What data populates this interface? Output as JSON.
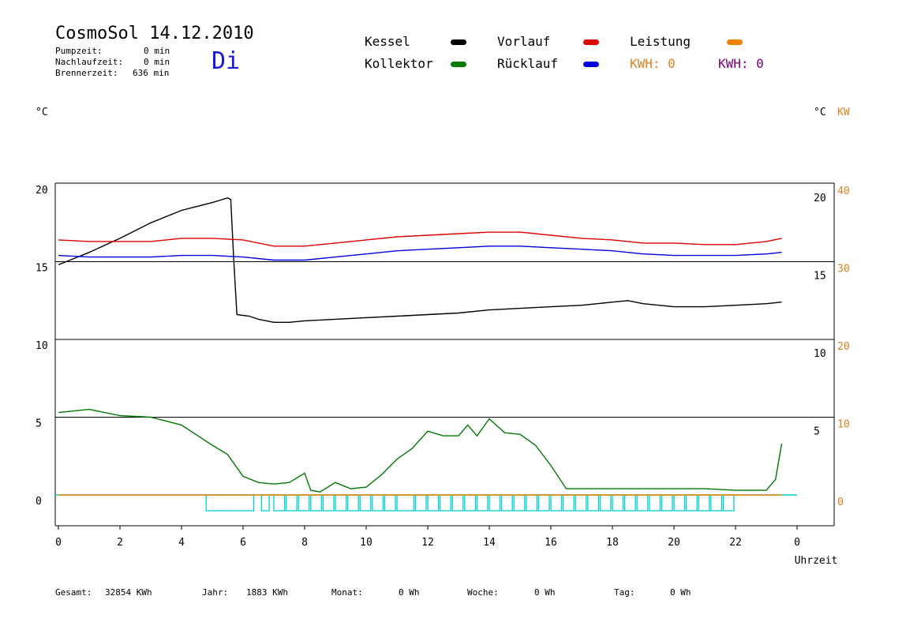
{
  "header": {
    "title": "CosmoSol 14.12.2010",
    "day": "Di",
    "pumpzeit_label": "Pumpzeit:",
    "pumpzeit_value": "0 min",
    "nachlaufzeit_label": "Nachlaufzeit:",
    "nachlaufzeit_value": "0 min",
    "brennerzeit_label": "Brennerzeit:",
    "brennerzeit_value": "636 min"
  },
  "legend": {
    "kessel": "Kessel",
    "vorlauf": "Vorlauf",
    "leistung": "Leistung",
    "kollektor": "Kollektor",
    "ruecklauf": "Rücklauf",
    "kwh1": "KWH: 0",
    "kwh2": "KWH: 0"
  },
  "colors": {
    "kessel": "#000000",
    "vorlauf": "#e00000",
    "ruecklauf": "#0000e0",
    "kollektor": "#007a00",
    "leistung": "#f08000",
    "kwh2": "#800080",
    "pump": "#00d0d0",
    "accent_orange": "#e08020"
  },
  "footer": {
    "gesamt_label": "Gesamt:",
    "gesamt_value": "32854 KWh",
    "jahr_label": "Jahr:",
    "jahr_value": "1883 KWh",
    "monat_label": "Monat:",
    "monat_value": "0 Wh",
    "woche_label": "Woche:",
    "woche_value": "0 Wh",
    "tag_label": "Tag:",
    "tag_value": "0 Wh"
  },
  "chart_data": {
    "type": "line",
    "left_unit": "°C",
    "right_unit": "°C",
    "right_unit2": "KW",
    "xlabel": "Uhrzeit",
    "x_ticks": [
      "0",
      "2",
      "4",
      "6",
      "8",
      "10",
      "12",
      "14",
      "16",
      "18",
      "20",
      "22",
      "0"
    ],
    "left_ticks": [
      "0",
      "5",
      "10",
      "15",
      "20"
    ],
    "right_ticks_inner": [
      "5",
      "10",
      "15",
      "20"
    ],
    "right_ticks_kw": [
      "0",
      "10",
      "20",
      "30",
      "40"
    ],
    "xlim": [
      0,
      24
    ],
    "ylim": [
      -2,
      20
    ],
    "grid": "horizontal",
    "series": [
      {
        "name": "Kessel",
        "color": "#000000",
        "x": [
          0,
          0.5,
          1,
          2,
          3,
          4,
          5,
          5.5,
          5.6,
          5.7,
          5.8,
          6.2,
          6.5,
          7,
          7.5,
          8,
          9,
          10,
          11,
          12,
          13,
          14,
          15,
          16,
          17,
          18,
          18.5,
          19,
          20,
          21,
          22,
          23,
          23.5
        ],
        "y": [
          14.8,
          15.2,
          15.6,
          16.5,
          17.5,
          18.3,
          18.8,
          19.1,
          19,
          15,
          11.6,
          11.5,
          11.3,
          11.1,
          11.1,
          11.2,
          11.3,
          11.4,
          11.5,
          11.6,
          11.7,
          11.9,
          12,
          12.1,
          12.2,
          12.4,
          12.5,
          12.3,
          12.1,
          12.1,
          12.2,
          12.3,
          12.4
        ]
      },
      {
        "name": "Vorlauf",
        "color": "#e00000",
        "x": [
          0,
          1,
          2,
          3,
          4,
          5,
          6,
          7,
          8,
          9,
          10,
          11,
          12,
          13,
          14,
          15,
          16,
          17,
          18,
          19,
          20,
          21,
          22,
          23,
          23.5
        ],
        "y": [
          16.4,
          16.3,
          16.3,
          16.3,
          16.5,
          16.5,
          16.4,
          16.0,
          16.0,
          16.2,
          16.4,
          16.6,
          16.7,
          16.8,
          16.9,
          16.9,
          16.7,
          16.5,
          16.4,
          16.2,
          16.2,
          16.1,
          16.1,
          16.3,
          16.5
        ]
      },
      {
        "name": "Rücklauf",
        "color": "#0000e0",
        "x": [
          0,
          1,
          2,
          3,
          4,
          5,
          6,
          7,
          8,
          9,
          10,
          11,
          12,
          13,
          14,
          15,
          16,
          17,
          18,
          19,
          20,
          21,
          22,
          23,
          23.5
        ],
        "y": [
          15.4,
          15.3,
          15.3,
          15.3,
          15.4,
          15.4,
          15.3,
          15.1,
          15.1,
          15.3,
          15.5,
          15.7,
          15.8,
          15.9,
          16.0,
          16.0,
          15.9,
          15.8,
          15.7,
          15.5,
          15.4,
          15.4,
          15.4,
          15.5,
          15.6
        ]
      },
      {
        "name": "Kollektor",
        "color": "#007a00",
        "x": [
          0,
          0.5,
          1,
          2,
          3,
          4,
          5,
          5.5,
          6,
          6.5,
          7,
          7.5,
          8,
          8.2,
          8.5,
          9,
          9.5,
          10,
          10.5,
          11,
          11.5,
          12,
          12.5,
          13,
          13.3,
          13.6,
          14,
          14.5,
          15,
          15.5,
          16,
          16.5,
          17,
          18,
          19,
          20,
          21,
          22,
          23,
          23.3,
          23.5
        ],
        "y": [
          5.3,
          5.4,
          5.5,
          5.1,
          5,
          4.5,
          3.2,
          2.6,
          1.2,
          0.8,
          0.7,
          0.8,
          1.4,
          0.3,
          0.2,
          0.8,
          0.4,
          0.5,
          1.3,
          2.3,
          3.0,
          4.1,
          3.8,
          3.8,
          4.5,
          3.8,
          4.9,
          4.0,
          3.9,
          3.2,
          1.9,
          0.4,
          0.4,
          0.4,
          0.4,
          0.4,
          0.4,
          0.3,
          0.3,
          1.0,
          3.3
        ]
      },
      {
        "name": "Leistung",
        "color": "#f08000",
        "x": [
          0,
          23.5
        ],
        "y": [
          0,
          0
        ]
      }
    ],
    "pump_intervals": [
      [
        4.8,
        6.4
      ],
      [
        6.6,
        6.9
      ],
      [
        7.0,
        7.4
      ],
      [
        7.4,
        7.8
      ],
      [
        7.8,
        8.2
      ],
      [
        8.2,
        8.6
      ],
      [
        8.6,
        9.0
      ],
      [
        9.0,
        9.4
      ],
      [
        9.4,
        9.8
      ],
      [
        9.8,
        10.2
      ],
      [
        10.2,
        10.6
      ],
      [
        10.6,
        11.0
      ],
      [
        11.0,
        11.6
      ],
      [
        11.6,
        12.0
      ],
      [
        12.0,
        12.4
      ],
      [
        12.4,
        12.8
      ],
      [
        12.8,
        13.2
      ],
      [
        13.2,
        13.6
      ],
      [
        13.6,
        14.0
      ],
      [
        14.0,
        14.4
      ],
      [
        14.4,
        14.8
      ],
      [
        14.8,
        15.2
      ],
      [
        15.2,
        15.6
      ],
      [
        15.6,
        16.0
      ],
      [
        16.0,
        16.4
      ],
      [
        16.4,
        16.8
      ],
      [
        16.8,
        17.2
      ],
      [
        17.2,
        17.6
      ],
      [
        17.6,
        18.0
      ],
      [
        18.0,
        18.4
      ],
      [
        18.4,
        18.8
      ],
      [
        18.8,
        19.2
      ],
      [
        19.2,
        19.6
      ],
      [
        19.6,
        20.0
      ],
      [
        20.0,
        20.4
      ],
      [
        20.4,
        20.8
      ],
      [
        20.8,
        21.2
      ],
      [
        21.2,
        21.6
      ],
      [
        21.6,
        22.0
      ]
    ]
  }
}
